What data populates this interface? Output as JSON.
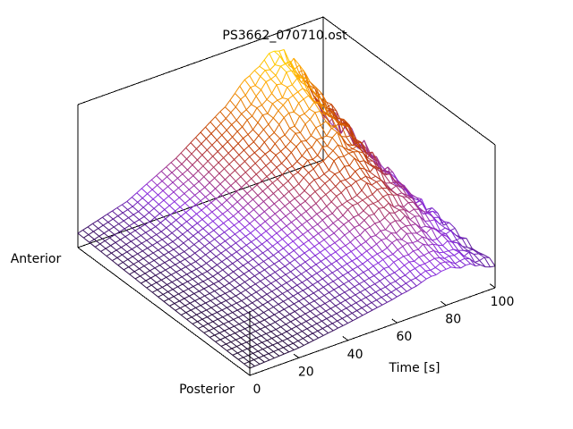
{
  "chart_data": {
    "type": "surface",
    "title": "PS3662_070710.ost",
    "xlabel": "Time [s]",
    "ylabel_front": "Posterior",
    "ylabel_back": "Anterior",
    "x_ticks": [
      0,
      20,
      40,
      60,
      80,
      100
    ],
    "xlim": [
      0,
      100
    ],
    "ylim": [
      0,
      1
    ],
    "zlim": [
      0,
      1
    ],
    "colormap": [
      "#000000",
      "#8a2be2",
      "#c03a00",
      "#ffa500",
      "#ffff00"
    ],
    "surface": {
      "description_values": "height as fraction of z range across Posterior→Anterior rows and Time columns",
      "x_count": 51,
      "y_count": 31,
      "base_level": 0.05,
      "rise": [
        {
          "time": 0,
          "front": 0.05,
          "back": 0.1
        },
        {
          "time": 20,
          "front": 0.07,
          "back": 0.2
        },
        {
          "time": 40,
          "front": 0.12,
          "back": 0.38
        },
        {
          "time": 60,
          "front": 0.18,
          "back": 0.62
        },
        {
          "time": 70,
          "front": 0.22,
          "back": 0.78
        },
        {
          "time": 80,
          "front": 0.25,
          "back": 0.92
        },
        {
          "time": 90,
          "front": 0.22,
          "back": 0.7
        },
        {
          "time": 100,
          "front": 0.16,
          "back": 0.35
        }
      ]
    }
  }
}
